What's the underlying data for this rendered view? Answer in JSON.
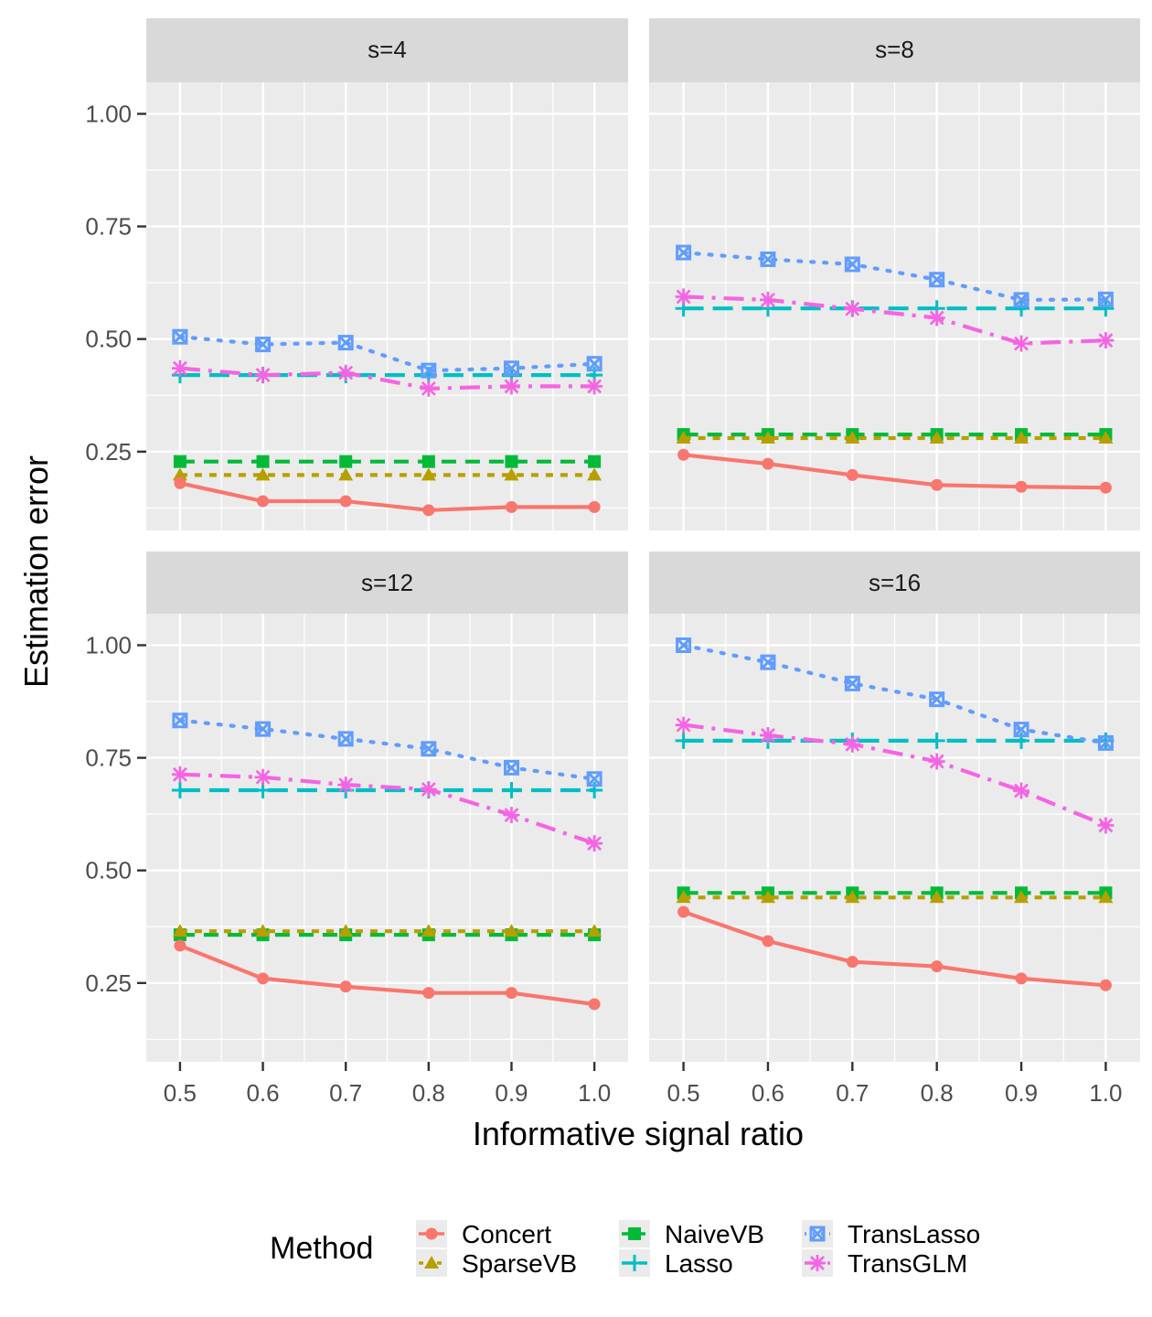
{
  "chart_data": {
    "type": "line",
    "xlabel": "Informative signal ratio",
    "ylabel": "Estimation error",
    "x": [
      0.5,
      0.6,
      0.7,
      0.8,
      0.9,
      1.0
    ],
    "x_tick_labels": [
      "0.5",
      "0.6",
      "0.7",
      "0.8",
      "0.9",
      "1.0"
    ],
    "ylim": [
      0.075,
      1.07
    ],
    "y_ticks": [
      0.25,
      0.5,
      0.75,
      1.0
    ],
    "y_tick_labels": [
      "0.25",
      "0.50",
      "0.75",
      "1.00"
    ],
    "legend": {
      "title": "Method",
      "position": "bottom",
      "entries": [
        "Concert",
        "SparseVB",
        "NaiveVB",
        "Lasso",
        "TransLasso",
        "TransGLM"
      ]
    },
    "colors": {
      "Concert": "#F8766D",
      "SparseVB": "#B79F00",
      "NaiveVB": "#00BA38",
      "Lasso": "#00BFC4",
      "TransLasso": "#619CFF",
      "TransGLM": "#F564E3"
    },
    "facets": [
      {
        "label": "s=4",
        "series": [
          {
            "name": "Concert",
            "values": [
              0.18,
              0.14,
              0.14,
              0.12,
              0.127,
              0.127
            ]
          },
          {
            "name": "SparseVB",
            "values": [
              0.198,
              0.198,
              0.198,
              0.198,
              0.198,
              0.198
            ]
          },
          {
            "name": "NaiveVB",
            "values": [
              0.228,
              0.228,
              0.228,
              0.228,
              0.228,
              0.228
            ]
          },
          {
            "name": "Lasso",
            "values": [
              0.42,
              0.42,
              0.42,
              0.42,
              0.42,
              0.42
            ]
          },
          {
            "name": "TransLasso",
            "values": [
              0.505,
              0.488,
              0.492,
              0.43,
              0.435,
              0.445
            ]
          },
          {
            "name": "TransGLM",
            "values": [
              0.435,
              0.42,
              0.425,
              0.39,
              0.395,
              0.395
            ]
          }
        ]
      },
      {
        "label": "s=8",
        "series": [
          {
            "name": "Concert",
            "values": [
              0.243,
              0.223,
              0.198,
              0.176,
              0.172,
              0.17
            ]
          },
          {
            "name": "SparseVB",
            "values": [
              0.28,
              0.28,
              0.28,
              0.28,
              0.28,
              0.28
            ]
          },
          {
            "name": "NaiveVB",
            "values": [
              0.288,
              0.288,
              0.288,
              0.288,
              0.288,
              0.288
            ]
          },
          {
            "name": "Lasso",
            "values": [
              0.568,
              0.568,
              0.568,
              0.568,
              0.568,
              0.568
            ]
          },
          {
            "name": "TransLasso",
            "values": [
              0.692,
              0.677,
              0.666,
              0.632,
              0.587,
              0.588
            ]
          },
          {
            "name": "TransGLM",
            "values": [
              0.594,
              0.587,
              0.567,
              0.547,
              0.49,
              0.497
            ]
          }
        ]
      },
      {
        "label": "s=12",
        "series": [
          {
            "name": "Concert",
            "values": [
              0.333,
              0.26,
              0.242,
              0.228,
              0.228,
              0.203
            ]
          },
          {
            "name": "SparseVB",
            "values": [
              0.365,
              0.365,
              0.365,
              0.365,
              0.365,
              0.365
            ]
          },
          {
            "name": "NaiveVB",
            "values": [
              0.357,
              0.357,
              0.357,
              0.357,
              0.357,
              0.357
            ]
          },
          {
            "name": "Lasso",
            "values": [
              0.678,
              0.678,
              0.678,
              0.678,
              0.678,
              0.678
            ]
          },
          {
            "name": "TransLasso",
            "values": [
              0.833,
              0.814,
              0.792,
              0.77,
              0.728,
              0.703
            ]
          },
          {
            "name": "TransGLM",
            "values": [
              0.713,
              0.707,
              0.69,
              0.68,
              0.623,
              0.56
            ]
          }
        ]
      },
      {
        "label": "s=16",
        "series": [
          {
            "name": "Concert",
            "values": [
              0.408,
              0.343,
              0.297,
              0.287,
              0.26,
              0.245
            ]
          },
          {
            "name": "SparseVB",
            "values": [
              0.44,
              0.44,
              0.44,
              0.44,
              0.44,
              0.44
            ]
          },
          {
            "name": "NaiveVB",
            "values": [
              0.45,
              0.45,
              0.45,
              0.45,
              0.45,
              0.45
            ]
          },
          {
            "name": "Lasso",
            "values": [
              0.788,
              0.788,
              0.788,
              0.788,
              0.788,
              0.788
            ]
          },
          {
            "name": "TransLasso",
            "values": [
              1.0,
              0.962,
              0.915,
              0.88,
              0.813,
              0.783
            ]
          },
          {
            "name": "TransGLM",
            "values": [
              0.823,
              0.8,
              0.78,
              0.742,
              0.677,
              0.6
            ]
          }
        ]
      }
    ]
  }
}
